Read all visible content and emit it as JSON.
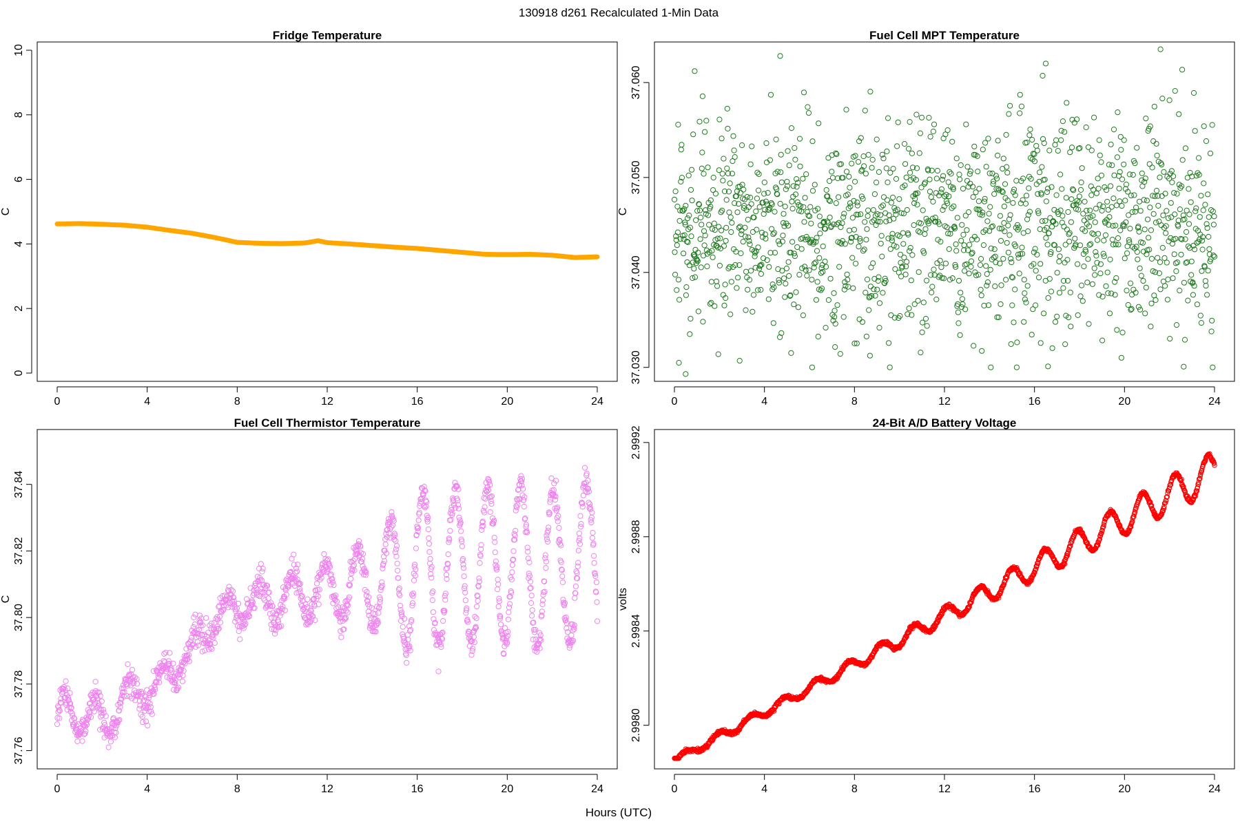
{
  "page": {
    "main_title": "130918   d261   Recalculated 1-Min Data",
    "shared_xlabel": "Hours (UTC)"
  },
  "chart_data": [
    {
      "id": "fridge",
      "type": "line",
      "title": "Fridge Temperature",
      "xlabel": "",
      "ylabel": "C",
      "xlim": [
        0,
        24
      ],
      "ylim": [
        0,
        10
      ],
      "xticks": [
        0,
        4,
        8,
        12,
        16,
        20,
        24
      ],
      "yticks": [
        0,
        2,
        4,
        6,
        8,
        10
      ],
      "ytick_labels": [
        "0",
        "2",
        "4",
        "6",
        "8",
        "10"
      ],
      "color": "#FFA500",
      "style": "thick-line",
      "series": [
        {
          "name": "Fridge Temperature",
          "x": [
            0,
            1,
            2,
            3,
            4,
            5,
            6,
            7,
            8,
            9,
            10,
            11,
            11.6,
            12,
            13,
            14,
            15,
            16,
            17,
            18,
            19,
            20,
            21,
            22,
            23,
            24
          ],
          "y": [
            4.62,
            4.63,
            4.61,
            4.58,
            4.52,
            4.42,
            4.33,
            4.2,
            4.05,
            4.02,
            4.01,
            4.03,
            4.1,
            4.04,
            4.0,
            3.95,
            3.9,
            3.86,
            3.8,
            3.74,
            3.68,
            3.67,
            3.68,
            3.65,
            3.58,
            3.6
          ]
        }
      ]
    },
    {
      "id": "mpt",
      "type": "scatter",
      "title": "Fuel Cell MPT Temperature",
      "xlabel": "",
      "ylabel": "C",
      "xlim": [
        0,
        24
      ],
      "ylim": [
        37.0294,
        37.0634
      ],
      "xticks": [
        0,
        4,
        8,
        12,
        16,
        20,
        24
      ],
      "yticks": [
        37.03,
        37.04,
        37.05,
        37.06
      ],
      "ytick_labels": [
        "37.030",
        "37.040",
        "37.050",
        "37.060"
      ],
      "color": "#1E7A1E",
      "generator": "noise",
      "generator_params": {
        "n": 1440,
        "center": 37.045,
        "spread": 0.0055,
        "min": 37.03,
        "max": 37.063
      },
      "highlight_points": {
        "x": [
          0.5,
          0.9,
          2.9,
          4.7,
          16.5,
          16.6,
          21.6
        ],
        "y": [
          37.0293,
          37.0612,
          37.0307,
          37.0628,
          37.062,
          37.0301,
          37.0635
        ]
      }
    },
    {
      "id": "thermistor",
      "type": "scatter",
      "title": "Fuel Cell Thermistor Temperature",
      "xlabel": "",
      "ylabel": "C",
      "xlim": [
        0,
        24
      ],
      "ylim": [
        37.757,
        37.854
      ],
      "xticks": [
        0,
        4,
        8,
        12,
        16,
        20,
        24
      ],
      "yticks": [
        37.76,
        37.78,
        37.8,
        37.82,
        37.84
      ],
      "ytick_labels": [
        "37.76",
        "37.78",
        "37.80",
        "37.82",
        "37.84"
      ],
      "color": "#EE82EE",
      "generator": "oscillating-trend",
      "trend_x": [
        0,
        1,
        2,
        3,
        4,
        5,
        6,
        7,
        8,
        10,
        12,
        14,
        16,
        18,
        20,
        22,
        24
      ],
      "trend_y": [
        37.767,
        37.773,
        37.768,
        37.776,
        37.777,
        37.784,
        37.79,
        37.8,
        37.803,
        37.806,
        37.808,
        37.81,
        37.814,
        37.815,
        37.816,
        37.815,
        37.817
      ],
      "amp_x": [
        0,
        4,
        8,
        12,
        14,
        16,
        24
      ],
      "amp_y": [
        0.009,
        0.004,
        0.005,
        0.008,
        0.013,
        0.024,
        0.024
      ],
      "period_hours": 1.45,
      "n": 1440
    },
    {
      "id": "battery",
      "type": "scatter",
      "title": "24-Bit A/D Battery Voltage",
      "xlabel": "",
      "ylabel": "volts",
      "xlim": [
        0,
        24
      ],
      "ylim": [
        2.99785,
        2.99922
      ],
      "xticks": [
        0,
        4,
        8,
        12,
        16,
        20,
        24
      ],
      "yticks": [
        2.998,
        2.9984,
        2.9988,
        2.9992
      ],
      "ytick_labels": [
        "2.9980",
        "2.9984",
        "2.9988",
        "2.9992"
      ],
      "color": "#FF0000",
      "generator": "oscillating-trend",
      "trend_x": [
        0,
        24
      ],
      "trend_y": [
        2.99785,
        2.99908
      ],
      "amp_x": [
        0,
        6,
        12,
        18,
        24
      ],
      "amp_y": [
        1.5e-05,
        2e-05,
        3.5e-05,
        6e-05,
        8e-05
      ],
      "period_hours": 1.45,
      "n": 1440
    }
  ]
}
